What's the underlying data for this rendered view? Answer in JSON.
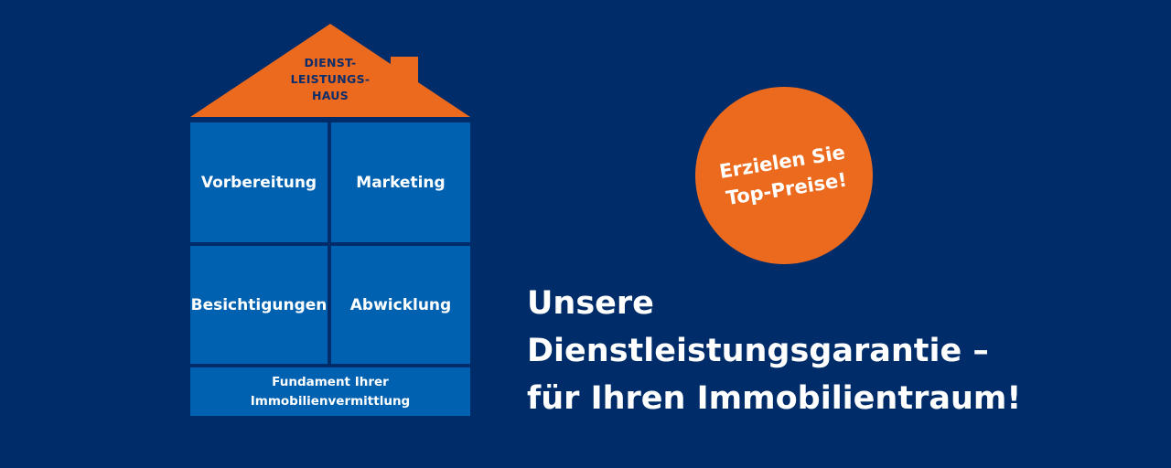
{
  "house": {
    "roof_label": "DIENST-\nLEISTUNGS-\nHAUS",
    "rooms": [
      "Vorbereitung",
      "Marketing",
      "Besichtigungen",
      "Abwicklung"
    ],
    "foundation": "Fundament  Ihrer\nImmobilienvermittlung"
  },
  "badge": {
    "text": "Erzielen Sie\nTop-Preise!"
  },
  "headline": {
    "line1": "Unsere",
    "line2": "Dienstleistungsgarantie –",
    "line3": "für Ihren Immobilientraum!"
  },
  "colors": {
    "background": "#002d6a",
    "room": "#0061b0",
    "accent": "#ec6a1e",
    "text": "#ffffff"
  }
}
